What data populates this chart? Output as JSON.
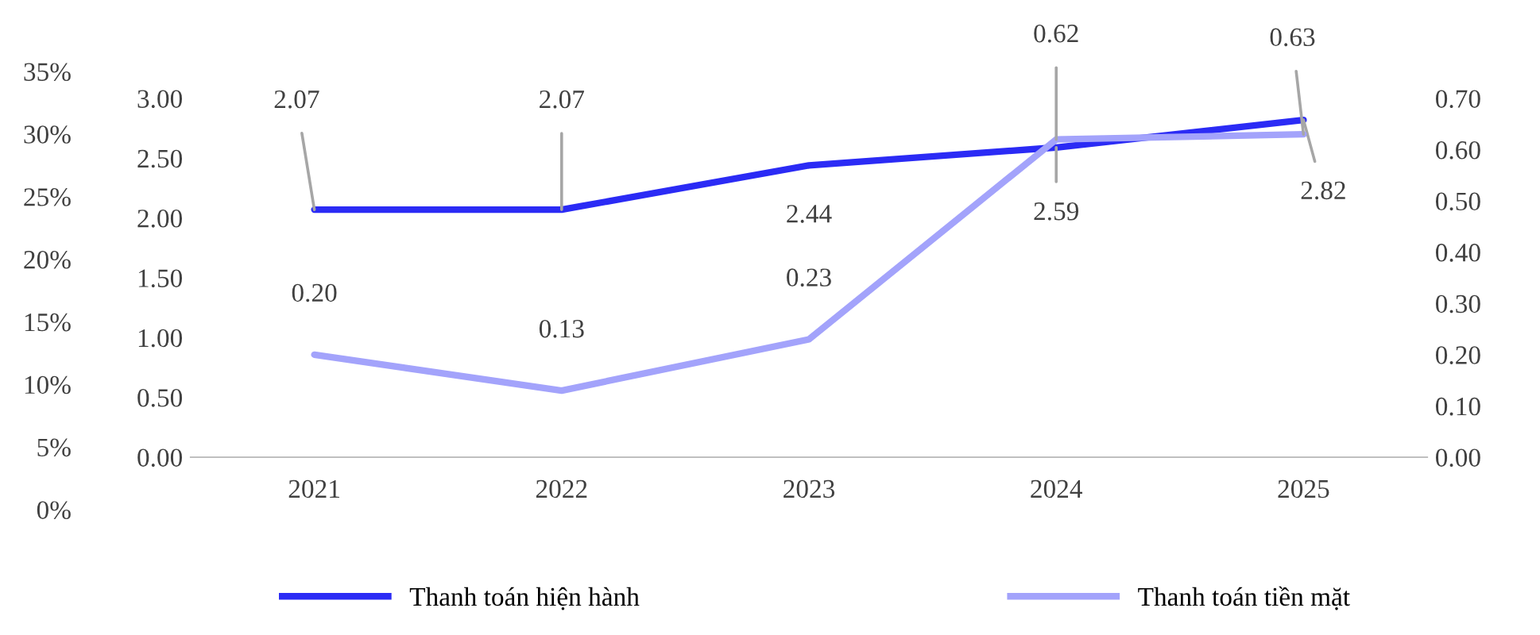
{
  "chart_data": {
    "type": "line",
    "categories": [
      "2021",
      "2022",
      "2023",
      "2024",
      "2025"
    ],
    "series": [
      {
        "name": "Thanh toán hiện hành",
        "color": "#2b2bf5",
        "values": [
          2.07,
          2.07,
          2.44,
          2.59,
          2.82
        ],
        "value_labels": [
          "2.07",
          "2.07",
          "2.44",
          "2.59",
          "2.82"
        ]
      },
      {
        "name": "Thanh toán tiền mặt",
        "color": "#a3a3fb",
        "values": [
          0.2,
          0.13,
          0.23,
          0.62,
          0.63
        ],
        "value_labels": [
          "0.20",
          "0.13",
          "0.23",
          "0.62",
          "0.63"
        ],
        "axis": "y2"
      }
    ],
    "ylim": [
      0,
      3
    ],
    "yticks": [
      {
        "value": 0,
        "label": "0.00"
      },
      {
        "value": 0.5,
        "label": "0.50"
      },
      {
        "value": 1,
        "label": "1.00"
      },
      {
        "value": 1.5,
        "label": "1.50"
      },
      {
        "value": 2,
        "label": "2.00"
      },
      {
        "value": 2.5,
        "label": "2.50"
      },
      {
        "value": 3,
        "label": "3.00"
      }
    ],
    "y2lim": [
      0,
      0.7
    ],
    "y2ticks": [
      {
        "value": 0,
        "label": "0.00"
      },
      {
        "value": 0.1,
        "label": "0.10"
      },
      {
        "value": 0.2,
        "label": "0.20"
      },
      {
        "value": 0.3,
        "label": "0.30"
      },
      {
        "value": 0.4,
        "label": "0.40"
      },
      {
        "value": 0.5,
        "label": "0.50"
      },
      {
        "value": 0.6,
        "label": "0.60"
      },
      {
        "value": 0.7,
        "label": "0.70"
      }
    ],
    "y3lim": [
      0,
      35
    ],
    "y3ticks": [
      {
        "value": 0,
        "label": "0%"
      },
      {
        "value": 5,
        "label": "5%"
      },
      {
        "value": 10,
        "label": "10%"
      },
      {
        "value": 15,
        "label": "15%"
      },
      {
        "value": 20,
        "label": "20%"
      },
      {
        "value": 25,
        "label": "25%"
      },
      {
        "value": 30,
        "label": "30%"
      },
      {
        "value": 35,
        "label": "35%"
      }
    ],
    "legend": "bottom",
    "grid": false,
    "marker": "none",
    "line_style": "solid"
  }
}
